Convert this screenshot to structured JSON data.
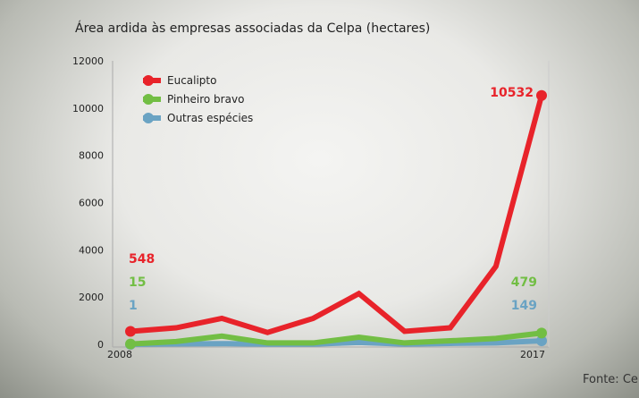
{
  "chart_data": {
    "type": "line",
    "title": "Área ardida às empresas associadas da Celpa (hectares)",
    "source": "Fonte: Cel",
    "x": [
      2008,
      2009,
      2010,
      2011,
      2012,
      2013,
      2014,
      2015,
      2016,
      2017
    ],
    "x_tick_labels": [
      "2008",
      "2017"
    ],
    "ylim": [
      0,
      12000
    ],
    "y_ticks": [
      0,
      2000,
      4000,
      6000,
      8000,
      10000,
      12000
    ],
    "grid": false,
    "legend_position": "top-left",
    "series": [
      {
        "name": "Eucalipto",
        "color": "#e8232a",
        "values": [
          548,
          700,
          1100,
          500,
          1100,
          2150,
          550,
          700,
          3300,
          10532
        ],
        "labels": {
          "first": "548",
          "last": "10532"
        }
      },
      {
        "name": "Pinheiro bravo",
        "color": "#72be44",
        "values": [
          15,
          120,
          350,
          60,
          60,
          300,
          60,
          150,
          250,
          479
        ],
        "labels": {
          "first": "15",
          "last": "479"
        }
      },
      {
        "name": "Outras espécies",
        "color": "#6aa3c3",
        "values": [
          1,
          20,
          30,
          10,
          10,
          80,
          10,
          40,
          60,
          149
        ],
        "labels": {
          "first": "1",
          "last": "149"
        }
      }
    ]
  }
}
